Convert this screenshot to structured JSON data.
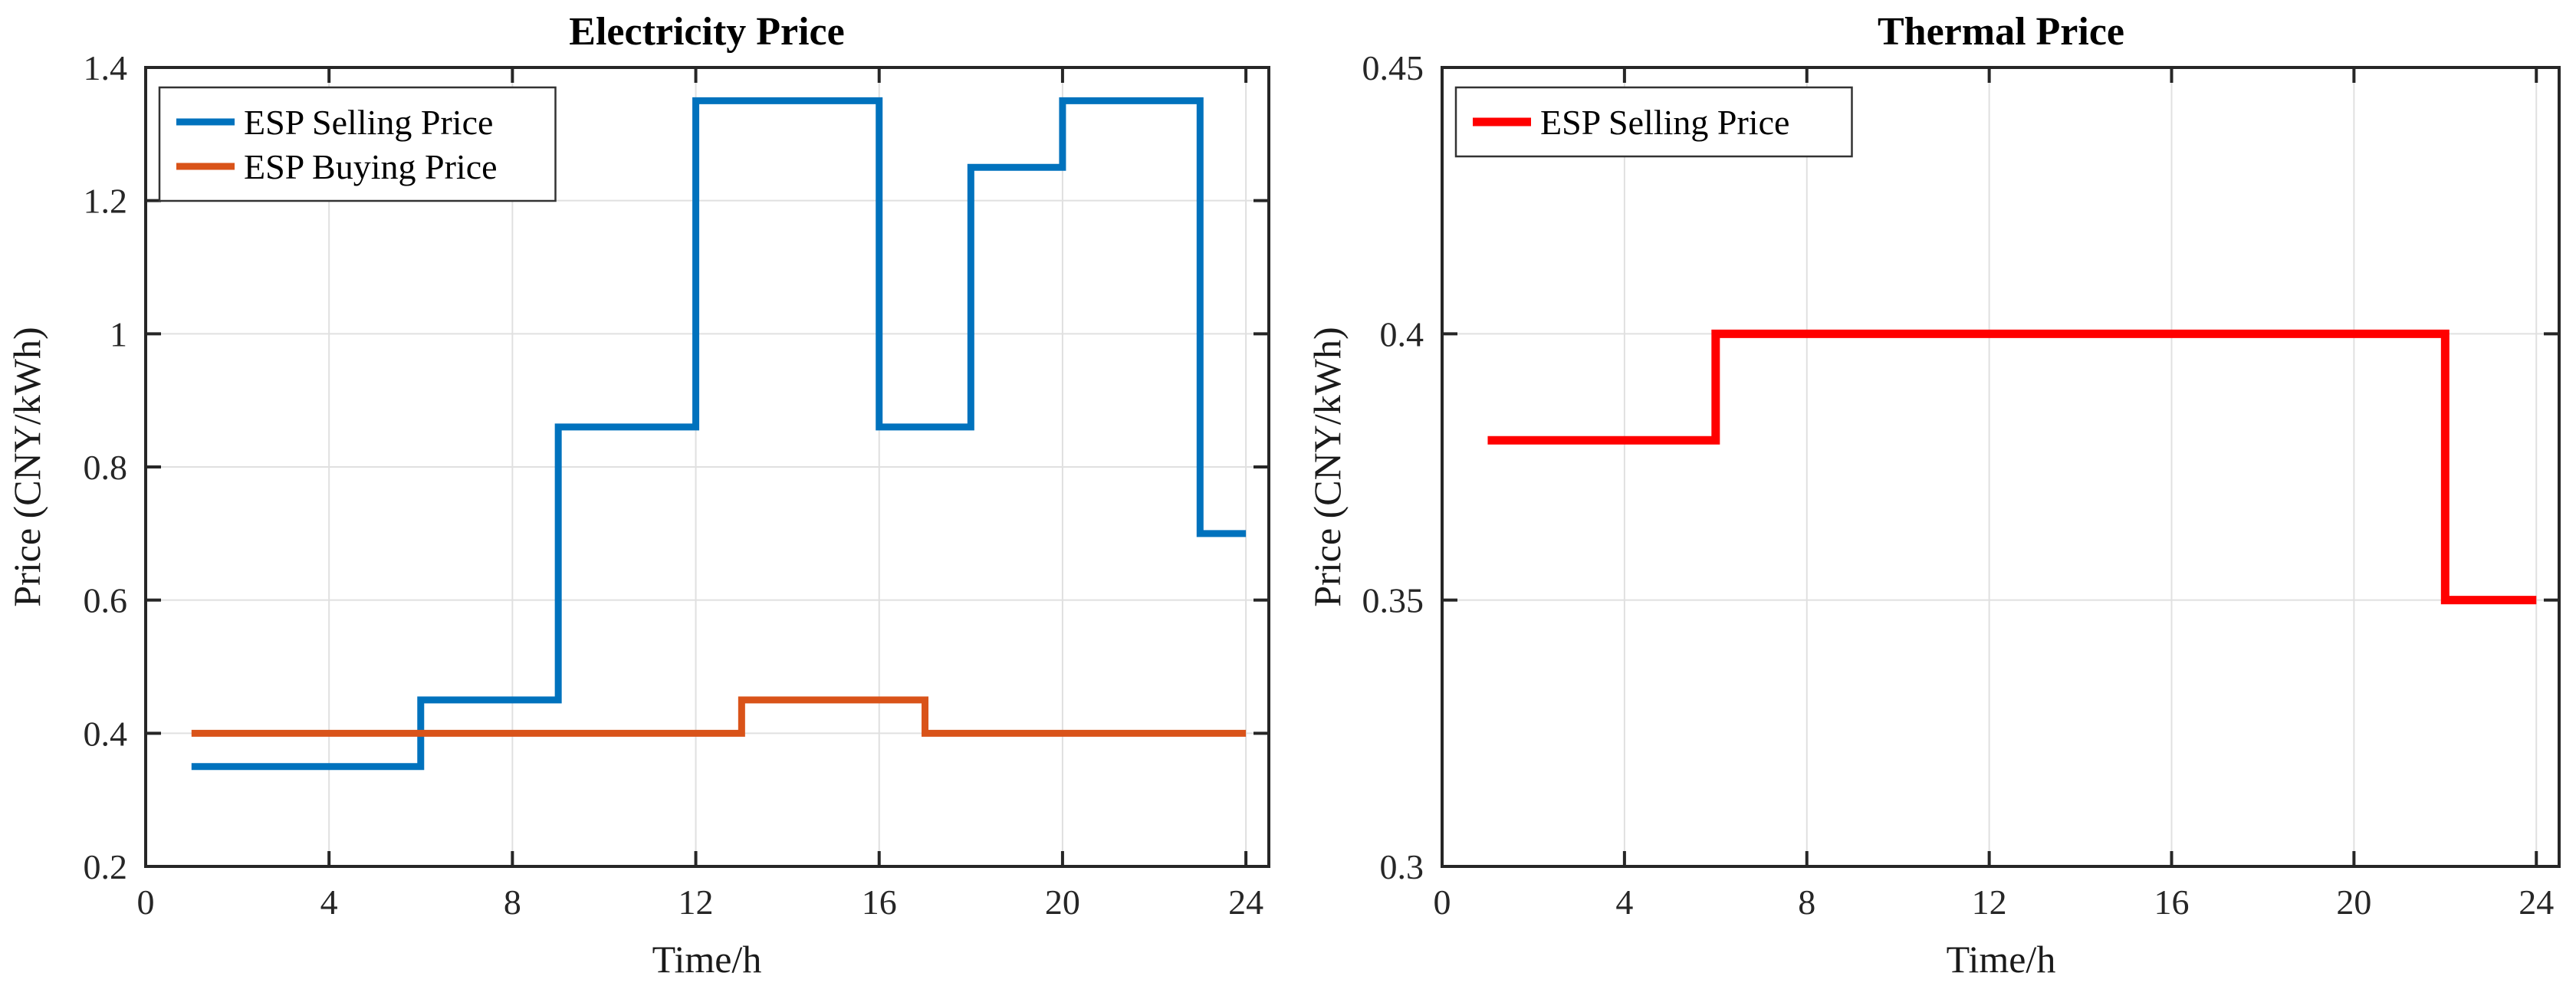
{
  "figure": {
    "background": "#ffffff",
    "axis_color": "#262626",
    "grid_color": "#e0e0e0",
    "legend_border_color": "#333333",
    "legend_background": "#ffffff"
  },
  "chart_data": [
    {
      "type": "stairs",
      "title": "Electricity Price",
      "xlabel": "Time/h",
      "ylabel": "Price (CNY/kWh)",
      "xlim": [
        0,
        24.5
      ],
      "ylim": [
        0.2,
        1.4
      ],
      "xticks": [
        0,
        4,
        8,
        12,
        16,
        20,
        24
      ],
      "xtick_labels": [
        "0",
        "4",
        "8",
        "12",
        "16",
        "20",
        "24"
      ],
      "yticks": [
        0.2,
        0.4,
        0.6,
        0.8,
        1,
        1.2,
        1.4
      ],
      "ytick_labels": [
        "0.2",
        "0.4",
        "0.6",
        "0.8",
        "1",
        "1.2",
        "1.4"
      ],
      "grid": true,
      "legend_position": "top-left",
      "series": [
        {
          "name": "ESP Selling Price",
          "color": "#0072BD",
          "linewidth": 9,
          "step_x": [
            1,
            6,
            9,
            12,
            16,
            18,
            20,
            23,
            24
          ],
          "step_y": [
            0.35,
            0.45,
            0.86,
            1.35,
            0.86,
            1.25,
            1.35,
            0.7
          ]
        },
        {
          "name": "ESP Buying Price",
          "color": "#D95319",
          "linewidth": 9,
          "step_x": [
            1,
            13,
            17,
            24
          ],
          "step_y": [
            0.4,
            0.45,
            0.4
          ]
        }
      ]
    },
    {
      "type": "stairs",
      "title": "Thermal Price",
      "xlabel": "Time/h",
      "ylabel": "Price (CNY/kWh)",
      "xlim": [
        0,
        24.5
      ],
      "ylim": [
        0.3,
        0.45
      ],
      "xticks": [
        0,
        4,
        8,
        12,
        16,
        20,
        24
      ],
      "xtick_labels": [
        "0",
        "4",
        "8",
        "12",
        "16",
        "20",
        "24"
      ],
      "yticks": [
        0.3,
        0.35,
        0.4,
        0.45
      ],
      "ytick_labels": [
        "0.3",
        "0.35",
        "0.4",
        "0.45"
      ],
      "grid": true,
      "legend_position": "top-left",
      "series": [
        {
          "name": "ESP Selling Price",
          "color": "#FF0000",
          "linewidth": 11,
          "step_x": [
            1,
            6,
            22,
            24
          ],
          "step_y": [
            0.38,
            0.4,
            0.35
          ]
        }
      ]
    }
  ]
}
